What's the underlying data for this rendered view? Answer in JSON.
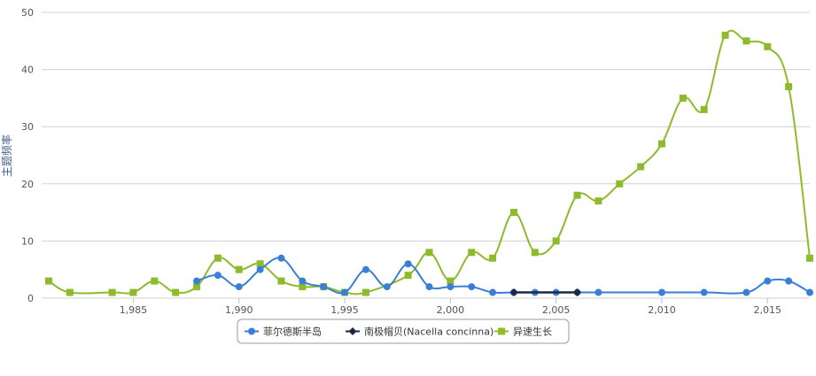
{
  "chart_data": {
    "type": "line",
    "title": "",
    "xlabel": "",
    "ylabel": "主题频率",
    "xlim": [
      1981,
      2017
    ],
    "ylim": [
      0,
      50
    ],
    "x_ticks": [
      1985,
      1990,
      1995,
      2000,
      2005,
      2010,
      2015
    ],
    "x_tick_labels": [
      "1,985",
      "1,990",
      "1,995",
      "2,000",
      "2,005",
      "2,010",
      "2,015"
    ],
    "y_ticks": [
      0,
      10,
      20,
      30,
      40,
      50
    ],
    "y_tick_labels": [
      "0",
      "10",
      "20",
      "30",
      "40",
      "50"
    ],
    "grid": true,
    "legend_position": "bottom-center",
    "series": [
      {
        "name": "菲尔德斯半岛",
        "color": "#3a7fd5",
        "marker": "circle",
        "points": [
          [
            1988,
            3
          ],
          [
            1989,
            4
          ],
          [
            1990,
            2
          ],
          [
            1991,
            5
          ],
          [
            1992,
            7
          ],
          [
            1993,
            3
          ],
          [
            1994,
            2
          ],
          [
            1995,
            1
          ],
          [
            1996,
            5
          ],
          [
            1997,
            2
          ],
          [
            1998,
            6
          ],
          [
            1999,
            2
          ],
          [
            2000,
            2
          ],
          [
            2001,
            2
          ],
          [
            2002,
            1
          ],
          [
            2003,
            1
          ],
          [
            2004,
            1
          ],
          [
            2005,
            1
          ],
          [
            2006,
            1
          ],
          [
            2007,
            1
          ],
          [
            2010,
            1
          ],
          [
            2012,
            1
          ],
          [
            2014,
            1
          ],
          [
            2015,
            3
          ],
          [
            2016,
            3
          ],
          [
            2017,
            1
          ]
        ]
      },
      {
        "name": "南极帽贝(Nacella concinna)",
        "color": "#1c2a40",
        "marker": "diamond",
        "points": [
          [
            2003,
            1
          ],
          [
            2006,
            1
          ]
        ]
      },
      {
        "name": "异速生长",
        "color": "#8dbb2c",
        "marker": "square",
        "points": [
          [
            1981,
            3
          ],
          [
            1982,
            1
          ],
          [
            1984,
            1
          ],
          [
            1985,
            1
          ],
          [
            1986,
            3
          ],
          [
            1987,
            1
          ],
          [
            1988,
            2
          ],
          [
            1989,
            7
          ],
          [
            1990,
            5
          ],
          [
            1991,
            6
          ],
          [
            1992,
            3
          ],
          [
            1993,
            2
          ],
          [
            1994,
            2
          ],
          [
            1995,
            1
          ],
          [
            1996,
            1
          ],
          [
            1998,
            4
          ],
          [
            1999,
            8
          ],
          [
            2000,
            3
          ],
          [
            2001,
            8
          ],
          [
            2002,
            7
          ],
          [
            2003,
            15
          ],
          [
            2004,
            8
          ],
          [
            2005,
            10
          ],
          [
            2006,
            18
          ],
          [
            2007,
            17
          ],
          [
            2008,
            20
          ],
          [
            2009,
            23
          ],
          [
            2010,
            27
          ],
          [
            2011,
            35
          ],
          [
            2012,
            33
          ],
          [
            2013,
            46
          ],
          [
            2014,
            45
          ],
          [
            2015,
            44
          ],
          [
            2016,
            37
          ],
          [
            2017,
            7
          ]
        ]
      }
    ]
  }
}
